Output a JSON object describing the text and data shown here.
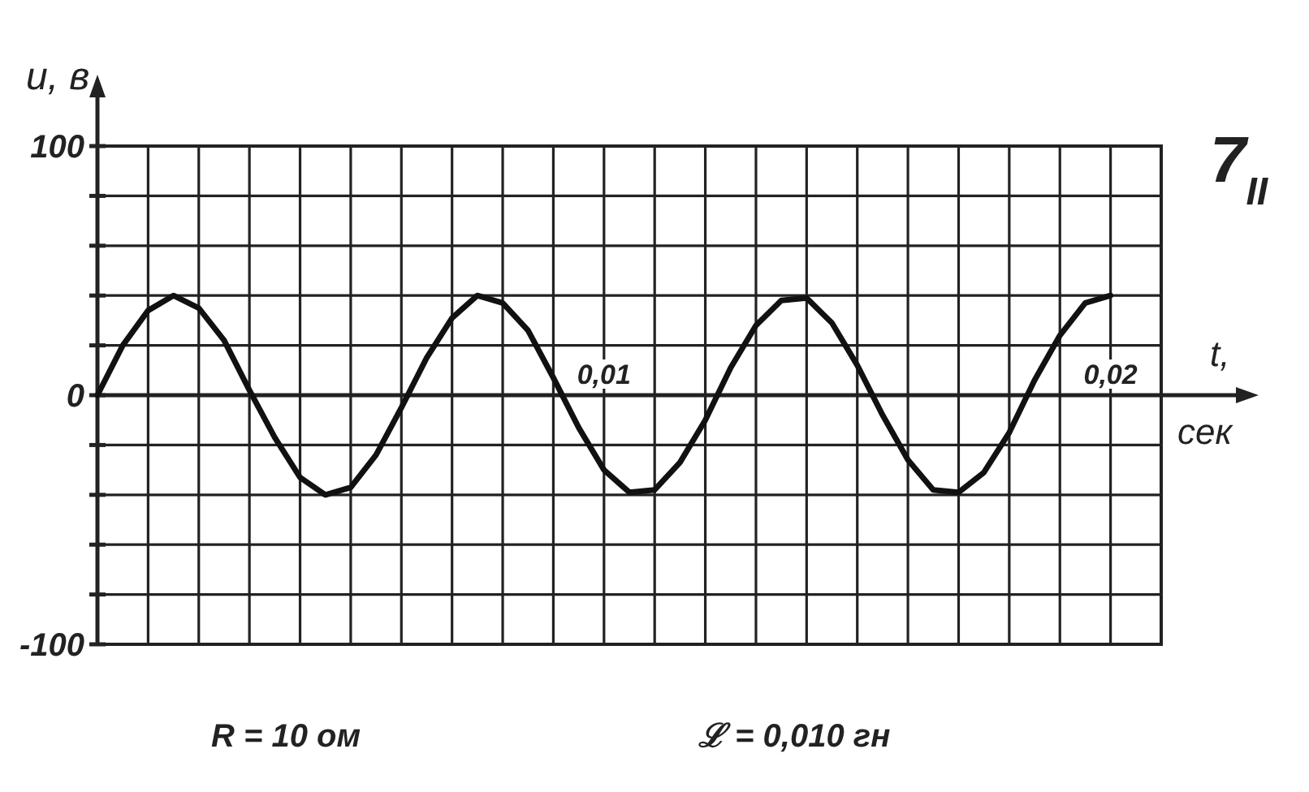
{
  "chart_data": {
    "type": "line",
    "xlabel": "t, сек",
    "ylabel": "u, в",
    "x": [
      0,
      0.0005,
      0.001,
      0.0015,
      0.002,
      0.0025,
      0.003,
      0.0035,
      0.004,
      0.0045,
      0.005,
      0.0055,
      0.006,
      0.0065,
      0.007,
      0.0075,
      0.008,
      0.0085,
      0.009,
      0.0095,
      0.01,
      0.0105,
      0.011,
      0.0115,
      0.012,
      0.0125,
      0.013,
      0.0135,
      0.014,
      0.0145,
      0.015,
      0.0155,
      0.016,
      0.0165,
      0.017,
      0.0175,
      0.018,
      0.0185,
      0.019,
      0.0195,
      0.02
    ],
    "series": [
      {
        "color": "#111111",
        "values": [
          0,
          20,
          34,
          40,
          35,
          22,
          2,
          -17,
          -33,
          -40,
          -37,
          -24,
          -5,
          15,
          31,
          40,
          37,
          26,
          7,
          -13,
          -30,
          -39,
          -38,
          -27,
          -10,
          11,
          28,
          38,
          39,
          29,
          12,
          -8,
          -26,
          -38,
          -39,
          -31,
          -15,
          6,
          24,
          37,
          40
        ]
      }
    ],
    "xlim": [
      0,
      0.021
    ],
    "xticks": [
      {
        "value": 0.001,
        "label": null
      },
      {
        "value": 0.002,
        "label": null
      },
      {
        "value": 0.003,
        "label": null
      },
      {
        "value": 0.004,
        "label": null
      },
      {
        "value": 0.005,
        "label": null
      },
      {
        "value": 0.006,
        "label": null
      },
      {
        "value": 0.007,
        "label": null
      },
      {
        "value": 0.008,
        "label": null
      },
      {
        "value": 0.009,
        "label": null
      },
      {
        "value": 0.01,
        "label": "0,01"
      },
      {
        "value": 0.011,
        "label": null
      },
      {
        "value": 0.012,
        "label": null
      },
      {
        "value": 0.013,
        "label": null
      },
      {
        "value": 0.014,
        "label": null
      },
      {
        "value": 0.015,
        "label": null
      },
      {
        "value": 0.016,
        "label": null
      },
      {
        "value": 0.017,
        "label": null
      },
      {
        "value": 0.018,
        "label": null
      },
      {
        "value": 0.019,
        "label": null
      },
      {
        "value": 0.02,
        "label": "0,02"
      },
      {
        "value": 0.021,
        "label": null
      }
    ],
    "ylim": [
      -100,
      100
    ],
    "yticks": [
      -100,
      {
        "value": -80,
        "label": null
      },
      {
        "value": -60,
        "label": null
      },
      {
        "value": -40,
        "label": null
      },
      {
        "value": -20,
        "label": null
      },
      0,
      {
        "value": 20,
        "label": null
      },
      {
        "value": 40,
        "label": null
      },
      {
        "value": 60,
        "label": null
      },
      {
        "value": 80,
        "label": null
      },
      100
    ],
    "grid": true,
    "marker": "none",
    "line_style": "solid",
    "annotations": [
      "7$_{II}$",
      "R = 10 ом",
      "ℒ = 0,010 гн"
    ]
  }
}
